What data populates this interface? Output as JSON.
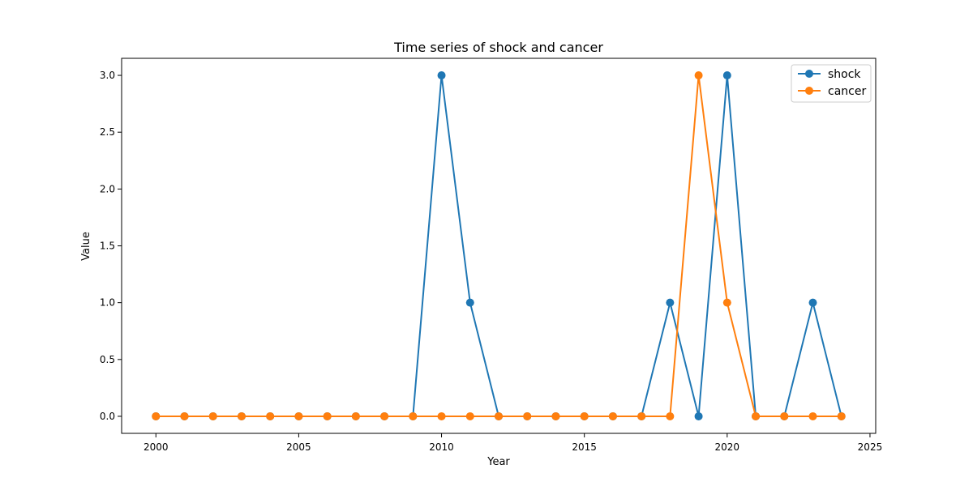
{
  "chart_data": {
    "type": "line",
    "title": "Time series of shock and cancer",
    "xlabel": "Year",
    "ylabel": "Value",
    "xlim": [
      1998.8,
      2025.2
    ],
    "ylim": [
      -0.15,
      3.15
    ],
    "xticks": [
      2000,
      2005,
      2010,
      2015,
      2020,
      2025
    ],
    "yticks": [
      0.0,
      0.5,
      1.0,
      1.5,
      2.0,
      2.5,
      3.0
    ],
    "x": [
      2000,
      2001,
      2002,
      2003,
      2004,
      2005,
      2006,
      2007,
      2008,
      2009,
      2010,
      2011,
      2012,
      2013,
      2014,
      2015,
      2016,
      2017,
      2018,
      2019,
      2020,
      2021,
      2022,
      2023,
      2024
    ],
    "series": [
      {
        "name": "shock",
        "color": "#1f77b4",
        "values": [
          0,
          0,
          0,
          0,
          0,
          0,
          0,
          0,
          0,
          0,
          3,
          1,
          0,
          0,
          0,
          0,
          0,
          0,
          1,
          0,
          3,
          0,
          0,
          1,
          0
        ]
      },
      {
        "name": "cancer",
        "color": "#ff7f0e",
        "values": [
          0,
          0,
          0,
          0,
          0,
          0,
          0,
          0,
          0,
          0,
          0,
          0,
          0,
          0,
          0,
          0,
          0,
          0,
          0,
          3,
          1,
          0,
          0,
          0,
          0
        ]
      }
    ],
    "legend": {
      "location": "top-right",
      "entries": [
        "shock",
        "cancer"
      ]
    },
    "grid": false
  }
}
